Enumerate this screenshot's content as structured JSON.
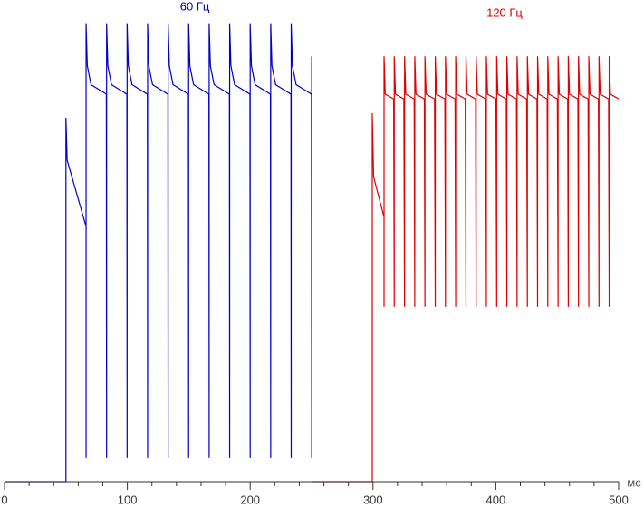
{
  "chart_data": {
    "type": "line",
    "x_label": "мс",
    "xlim": [
      0,
      500
    ],
    "xticks": [
      0,
      100,
      200,
      300,
      400,
      500
    ],
    "xminorticks": [
      20,
      40,
      60,
      80,
      120,
      140,
      160,
      180,
      220,
      240,
      260,
      280,
      320,
      340,
      360,
      380,
      420,
      440,
      460,
      480
    ],
    "ylim": [
      0,
      100
    ],
    "series": [
      {
        "name": "60 Гц",
        "color": "#0000cc",
        "x": [
          0,
          50,
          50,
          51,
          66.4,
          66.4,
          66.4,
          67.4,
          70.4,
          82.9,
          83.1,
          83.1,
          84.1,
          87.1,
          99.6,
          99.8,
          99.8,
          100.8,
          103.8,
          116.3,
          116.5,
          116.5,
          117.5,
          120.5,
          133,
          133.2,
          133.2,
          134.2,
          137.2,
          149.7,
          149.9,
          149.9,
          150.9,
          153.9,
          166.4,
          166.6,
          166.6,
          167.6,
          170.6,
          183.1,
          183.3,
          183.3,
          184.3,
          187.3,
          199.8,
          200,
          200,
          201,
          204,
          216.5,
          216.7,
          216.7,
          217.7,
          220.7,
          233.2,
          233.4,
          233.4,
          234.4,
          237.4,
          249.9,
          250.1,
          250.1
        ],
        "values": [
          0,
          0,
          77,
          68,
          54,
          5,
          97,
          88,
          84,
          82,
          5,
          97,
          88,
          84,
          82,
          5,
          97,
          88,
          84,
          82,
          5,
          97,
          88,
          84,
          82,
          5,
          97,
          88,
          84,
          82,
          5,
          97,
          88,
          84,
          82,
          5,
          97,
          88,
          84,
          82,
          5,
          97,
          88,
          84,
          82,
          5,
          97,
          88,
          84,
          82,
          5,
          97,
          88,
          84,
          82,
          5,
          97,
          88,
          84,
          82,
          5,
          90
        ]
      },
      {
        "name": "120 Гц",
        "color": "#e00000",
        "x": [
          250,
          299.4,
          299.4,
          300.5,
          309,
          309,
          309,
          310,
          316.8,
          317.3,
          317.3,
          318.3,
          325.1,
          325.7,
          325.7,
          326.7,
          333.5,
          334,
          334,
          335,
          341.8,
          342.3,
          342.3,
          343.3,
          350.1,
          350.7,
          350.7,
          351.7,
          358.5,
          359,
          359,
          360,
          366.8,
          367.3,
          367.3,
          368.3,
          375.1,
          375.7,
          375.7,
          376.7,
          383.5,
          384,
          384,
          385,
          391.8,
          392.3,
          392.3,
          393.3,
          400.1,
          400.7,
          400.7,
          401.7,
          408.5,
          409,
          409,
          410,
          416.8,
          417.3,
          417.3,
          418.3,
          425.1,
          425.7,
          425.7,
          426.7,
          433.5,
          434,
          434,
          435,
          441.8,
          442.3,
          442.3,
          443.3,
          450.1,
          450.7,
          450.7,
          451.7,
          458.5,
          459,
          459,
          460,
          466.8,
          467.3,
          467.3,
          468.3,
          475.1,
          475.7,
          475.7,
          476.7,
          483.5,
          484,
          484,
          485,
          491.8,
          492.3,
          492.3,
          493.3,
          500
        ],
        "values": [
          0,
          0,
          78,
          64.5,
          56,
          37,
          90,
          82,
          81,
          37,
          90,
          82,
          81,
          37,
          90,
          82,
          81,
          37,
          90,
          82,
          81,
          37,
          90,
          82,
          81,
          37,
          90,
          82,
          81,
          37,
          90,
          82,
          81,
          37,
          90,
          82,
          81,
          37,
          90,
          82,
          81,
          37,
          90,
          82,
          81,
          37,
          90,
          82,
          81,
          37,
          90,
          82,
          81,
          37,
          90,
          82,
          81,
          37,
          90,
          82,
          81,
          37,
          90,
          82,
          81,
          37,
          90,
          82,
          81,
          37,
          90,
          82,
          81,
          37,
          90,
          82,
          81,
          37,
          90,
          82,
          81,
          37,
          90,
          82,
          81,
          37,
          90,
          82,
          81,
          37,
          90,
          82,
          81,
          37,
          90,
          82,
          81
        ]
      }
    ]
  }
}
